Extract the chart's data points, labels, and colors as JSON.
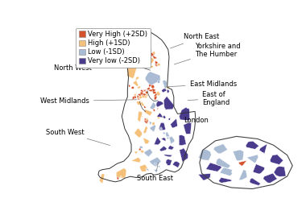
{
  "legend_items": [
    {
      "label": "Very High (+2SD)",
      "color": "#D4522B"
    },
    {
      "label": "High (+1SD)",
      "color": "#F5C07A"
    },
    {
      "label": "Low (-1SD)",
      "color": "#AABBD4"
    },
    {
      "label": "Very low (-2SD)",
      "color": "#4A3B8C"
    }
  ],
  "bg_color": "#FFFFFF",
  "colors": {
    "very_high": "#D4522B",
    "high": "#F5C07A",
    "low": "#AABBD4",
    "very_low": "#4A3B8C"
  },
  "font_size_label": 6.0,
  "font_size_legend": 6.0,
  "arrow_style": {
    "arrowstyle": "-",
    "color": "gray",
    "lw": 0.5
  }
}
